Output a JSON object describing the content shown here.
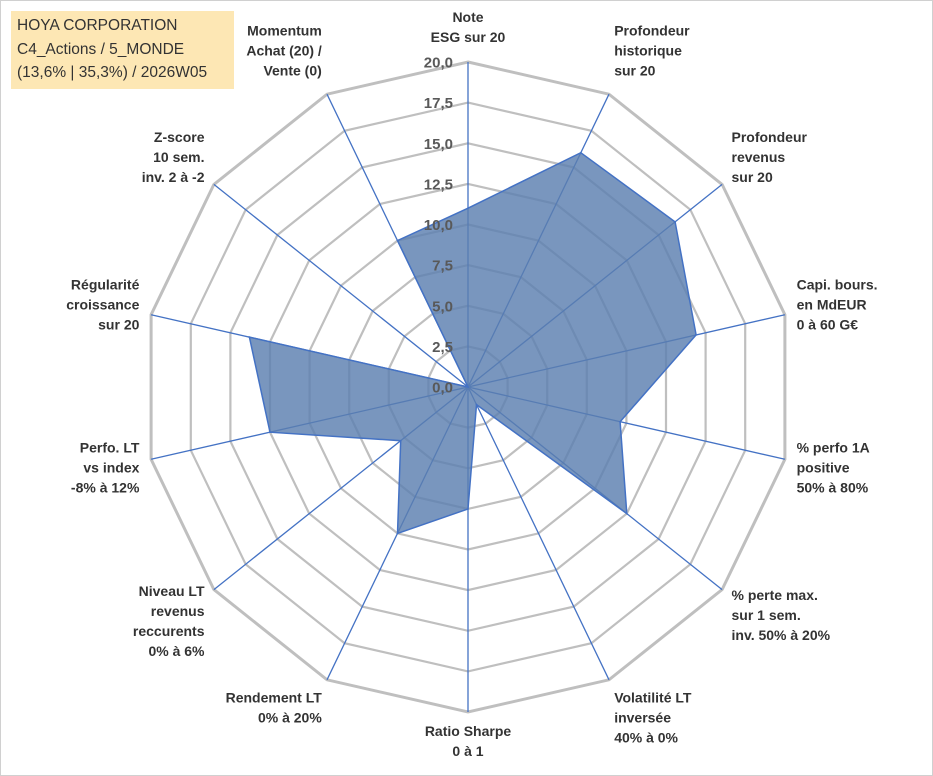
{
  "header": {
    "lines": [
      "HOYA CORPORATION",
      "C4_Actions / 5_MONDE",
      "(13,6% | 35,3%) / 2026W05"
    ]
  },
  "colors": {
    "header_bg": "#fde7b4",
    "fill": "#5b7fb0",
    "spoke": "#4472c4",
    "grid": "#bfbfbf"
  },
  "chart_data": {
    "type": "radar",
    "title": "",
    "rlim": [
      0,
      20
    ],
    "ticks": [
      "0,0",
      "2,5",
      "5,0",
      "7,5",
      "10,0",
      "12,5",
      "15,0",
      "17,5",
      "20,0"
    ],
    "grid": true,
    "axes": [
      [
        "Note",
        "ESG sur 20"
      ],
      [
        "Profondeur",
        "historique",
        "sur 20"
      ],
      [
        "Profondeur",
        "revenus",
        "sur 20"
      ],
      [
        "Capi. bours.",
        "en MdEUR",
        "0 à 60 G€"
      ],
      [
        "% perfo 1A",
        "positive",
        "50% à 80%"
      ],
      [
        "% perte max.",
        "sur 1 sem.",
        "inv. 50% à 20%"
      ],
      [
        "Volatilité LT",
        "inversée",
        "40% à 0%"
      ],
      [
        "Ratio Sharpe",
        "0 à 1"
      ],
      [
        "Rendement LT",
        "0% à 20%"
      ],
      [
        "Niveau LT",
        "revenus",
        "reccurents",
        "0% à 6%"
      ],
      [
        "Perfo. LT",
        "vs index",
        "-8% à 12%"
      ],
      [
        "Régularité",
        "croissance",
        "sur 20"
      ],
      [
        "Z-score",
        "10 sem.",
        "inv. 2 à -2"
      ],
      [
        "Momentum",
        "Achat (20) /",
        "Vente (0)"
      ]
    ],
    "series": [
      {
        "values": [
          11.0,
          16.0,
          16.3,
          14.4,
          9.6,
          12.5,
          1.2,
          7.5,
          10.0,
          5.3,
          12.5,
          13.8,
          0.0,
          10.0
        ]
      }
    ]
  }
}
